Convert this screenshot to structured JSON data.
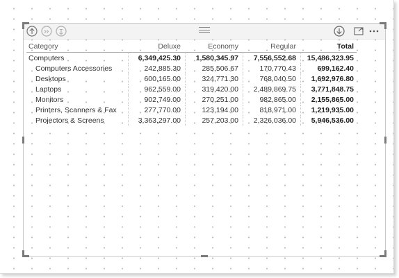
{
  "visual_header": {
    "icons": [
      "drill-up-icon",
      "expand-all-icon",
      "drill-mode-icon",
      "drill-down-icon",
      "focus-mode-icon",
      "more-options-icon"
    ]
  },
  "table": {
    "columns": [
      "Category",
      "Deluxe",
      "Economy",
      "Regular",
      "Total"
    ],
    "rows": [
      {
        "label": "Computers",
        "level": 0,
        "deluxe": "6,349,425.30",
        "economy": "1,580,345.97",
        "regular": "7,556,552.68",
        "total": "15,486,323.95",
        "bold_values": true
      },
      {
        "label": "Computers Accessories",
        "level": 1,
        "deluxe": "242,885.30",
        "economy": "285,506.67",
        "regular": "170,770.43",
        "total": "699,162.40",
        "bold_values": false
      },
      {
        "label": "Desktops",
        "level": 1,
        "deluxe": "600,165.00",
        "economy": "324,771.30",
        "regular": "768,040.50",
        "total": "1,692,976.80",
        "bold_values": false
      },
      {
        "label": "Laptops",
        "level": 1,
        "deluxe": "962,559.00",
        "economy": "319,420.00",
        "regular": "2,489,869.75",
        "total": "3,771,848.75",
        "bold_values": false
      },
      {
        "label": "Monitors",
        "level": 1,
        "deluxe": "902,749.00",
        "economy": "270,251.00",
        "regular": "982,865.00",
        "total": "2,155,865.00",
        "bold_values": false
      },
      {
        "label": "Printers, Scanners & Fax",
        "level": 1,
        "deluxe": "277,770.00",
        "economy": "123,194.00",
        "regular": "818,971.00",
        "total": "1,219,935.00",
        "bold_values": false
      },
      {
        "label": "Projectors & Screens",
        "level": 1,
        "deluxe": "3,363,297.00",
        "economy": "257,203.00",
        "regular": "2,326,036.00",
        "total": "5,946,536.00",
        "bold_values": false
      }
    ]
  }
}
